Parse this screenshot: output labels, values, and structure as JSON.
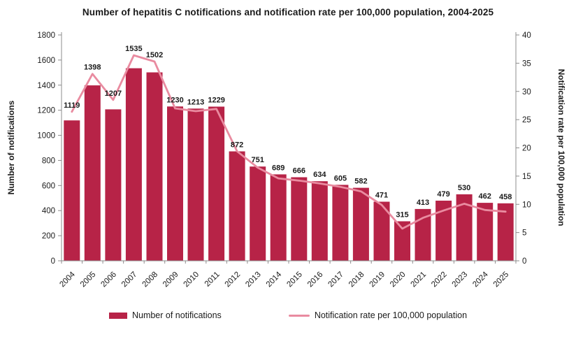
{
  "title": "Number of hepatitis C notifications and notification rate per 100,000 population, 2004-2025",
  "colors": {
    "bar": "#B72347",
    "line": "#E98BA0",
    "axis": "#8c8c8c",
    "text": "#1a1a1a"
  },
  "chart_data": {
    "type": "bar+line",
    "title": "Number of hepatitis C notifications and notification rate per 100,000 population, 2004-2025",
    "categories": [
      "2004",
      "2005",
      "2006",
      "2007",
      "2008",
      "2009",
      "2010",
      "2011",
      "2012",
      "2013",
      "2014",
      "2015",
      "2016",
      "2017",
      "2018",
      "2019",
      "2020",
      "2021",
      "2022",
      "2023",
      "2024",
      "2025"
    ],
    "series": [
      {
        "name": "Number of notifications",
        "type": "bar",
        "axis": "left",
        "color": "#B72347",
        "values": [
          1119,
          1398,
          1207,
          1535,
          1502,
          1230,
          1213,
          1229,
          872,
          751,
          689,
          666,
          634,
          605,
          582,
          471,
          315,
          413,
          479,
          530,
          462,
          458
        ]
      },
      {
        "name": "Notification rate per 100,000 population",
        "type": "line",
        "axis": "right",
        "color": "#E98BA0",
        "values": [
          26.4,
          33.1,
          28.5,
          36.4,
          35.3,
          27.0,
          26.5,
          26.9,
          19.4,
          16.5,
          14.6,
          14.2,
          13.7,
          13.1,
          12.3,
          9.9,
          5.7,
          7.6,
          8.9,
          10.1,
          9.0,
          8.7
        ]
      }
    ],
    "left_axis": {
      "label": "Number of notifications",
      "min": 0,
      "max": 1800,
      "step": 200,
      "ticks": [
        "0",
        "200",
        "400",
        "600",
        "800",
        "1000",
        "1200",
        "1400",
        "1600",
        "1800"
      ]
    },
    "right_axis": {
      "label": "Notification rate per 100,000 population",
      "min": 0,
      "max": 40,
      "step": 5,
      "ticks": [
        "0",
        "5",
        "10",
        "15",
        "20",
        "25",
        "30",
        "35",
        "40"
      ]
    },
    "grid": false,
    "legend_position": "bottom",
    "data_labels": "bars",
    "legend": [
      "Number of notifications",
      "Notification rate per 100,000 population"
    ]
  }
}
